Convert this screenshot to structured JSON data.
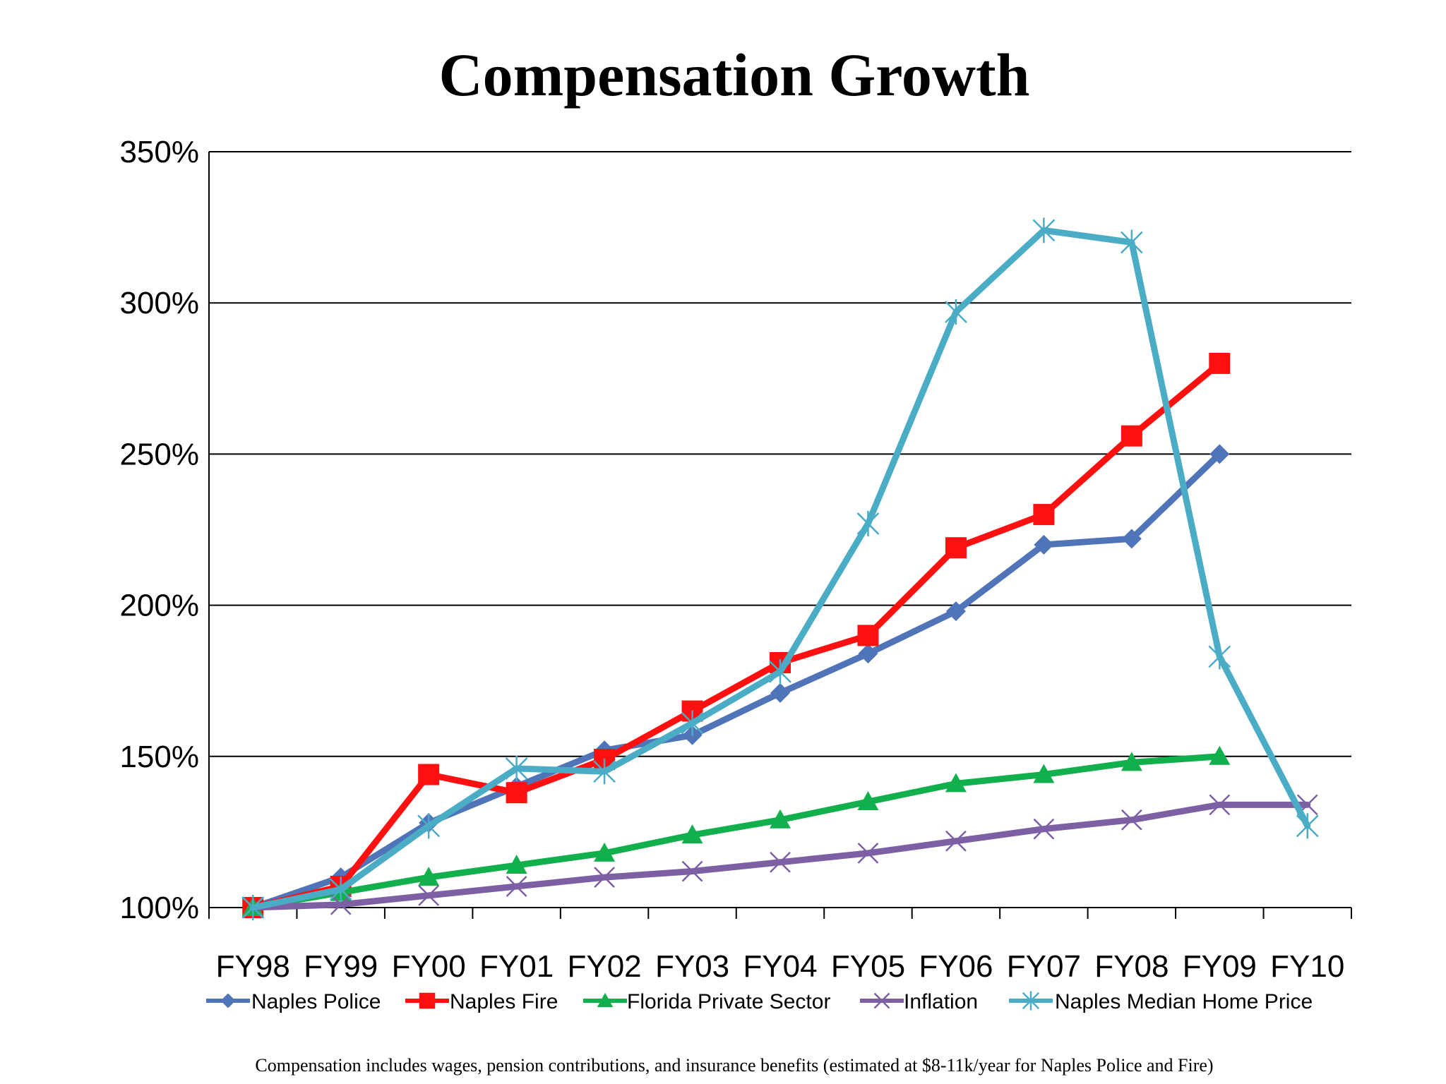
{
  "chart_data": {
    "type": "line",
    "title": "Compensation Growth",
    "xlabel": "",
    "ylabel": "",
    "ylim": [
      100,
      350
    ],
    "yticks": [
      100,
      150,
      200,
      250,
      300,
      350
    ],
    "ytick_labels": [
      "100%",
      "150%",
      "200%",
      "250%",
      "300%",
      "350%"
    ],
    "categories": [
      "FY98",
      "FY99",
      "FY00",
      "FY01",
      "FY02",
      "FY03",
      "FY04",
      "FY05",
      "FY06",
      "FY07",
      "FY08",
      "FY09",
      "FY10"
    ],
    "grid": true,
    "legend_position": "bottom",
    "series": [
      {
        "name": "Naples Police",
        "color": "#4F74B8",
        "marker": "diamond",
        "values": [
          100,
          110,
          128,
          140,
          152,
          157,
          171,
          184,
          198,
          220,
          222,
          250,
          null
        ]
      },
      {
        "name": "Naples Fire",
        "color": "#FF1010",
        "marker": "square",
        "values": [
          100,
          107,
          144,
          138,
          149,
          165,
          181,
          190,
          219,
          230,
          256,
          280,
          null
        ]
      },
      {
        "name": "Florida Private Sector",
        "color": "#12B04C",
        "marker": "triangle",
        "values": [
          100,
          105,
          110,
          114,
          118,
          124,
          129,
          135,
          141,
          144,
          148,
          150,
          null
        ]
      },
      {
        "name": "Inflation",
        "color": "#7D5FA4",
        "marker": "x",
        "values": [
          100,
          101,
          104,
          107,
          110,
          112,
          115,
          118,
          122,
          126,
          129,
          134,
          134
        ]
      },
      {
        "name": "Naples Median Home Price",
        "color": "#4BACC6",
        "marker": "asterisk",
        "values": [
          100,
          106,
          127,
          146,
          145,
          161,
          178,
          227,
          297,
          324,
          320,
          183,
          127
        ]
      }
    ],
    "footnote": "Compensation includes wages, pension contributions, and insurance benefits (estimated at $8-11k/year for Naples Police and Fire)"
  }
}
